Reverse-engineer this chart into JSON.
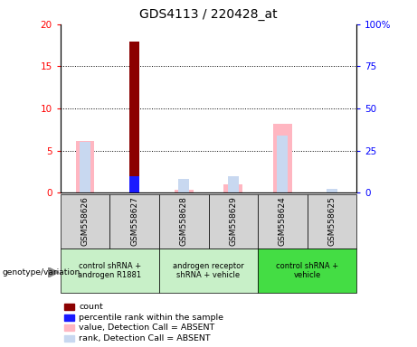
{
  "title": "GDS4113 / 220428_at",
  "samples": [
    "GSM558626",
    "GSM558627",
    "GSM558628",
    "GSM558629",
    "GSM558624",
    "GSM558625"
  ],
  "count_values": [
    0,
    18,
    0,
    0,
    0,
    0
  ],
  "percentile_rank_values": [
    0,
    9.7,
    0,
    0,
    0,
    0
  ],
  "value_absent": [
    6.1,
    0,
    0.3,
    1.0,
    8.2,
    0
  ],
  "rank_absent": [
    6.0,
    0,
    1.6,
    1.9,
    6.8,
    0.4
  ],
  "ylim_left": [
    0,
    20
  ],
  "ylim_right": [
    0,
    100
  ],
  "yticks_left": [
    0,
    5,
    10,
    15,
    20
  ],
  "yticks_right": [
    0,
    25,
    50,
    75,
    100
  ],
  "ytick_labels_left": [
    "0",
    "5",
    "10",
    "15",
    "20"
  ],
  "ytick_labels_right": [
    "0",
    "25",
    "50",
    "75",
    "100%"
  ],
  "color_count": "#8B0000",
  "color_percentile": "#1a1aff",
  "color_value_absent": "#FFB6C1",
  "color_rank_absent": "#c8d8f0",
  "group_info": [
    {
      "start": 0,
      "end": 1,
      "label": "control shRNA +\nandrogen R1881",
      "color": "#c8f0c8"
    },
    {
      "start": 2,
      "end": 3,
      "label": "androgen receptor\nshRNA + vehicle",
      "color": "#c8f0c8"
    },
    {
      "start": 4,
      "end": 5,
      "label": "control shRNA +\nvehicle",
      "color": "#44dd44"
    }
  ],
  "legend_items": [
    {
      "color": "#8B0000",
      "label": "count"
    },
    {
      "color": "#1a1aff",
      "label": "percentile rank within the sample"
    },
    {
      "color": "#FFB6C1",
      "label": "value, Detection Call = ABSENT"
    },
    {
      "color": "#c8d8f0",
      "label": "rank, Detection Call = ABSENT"
    }
  ]
}
